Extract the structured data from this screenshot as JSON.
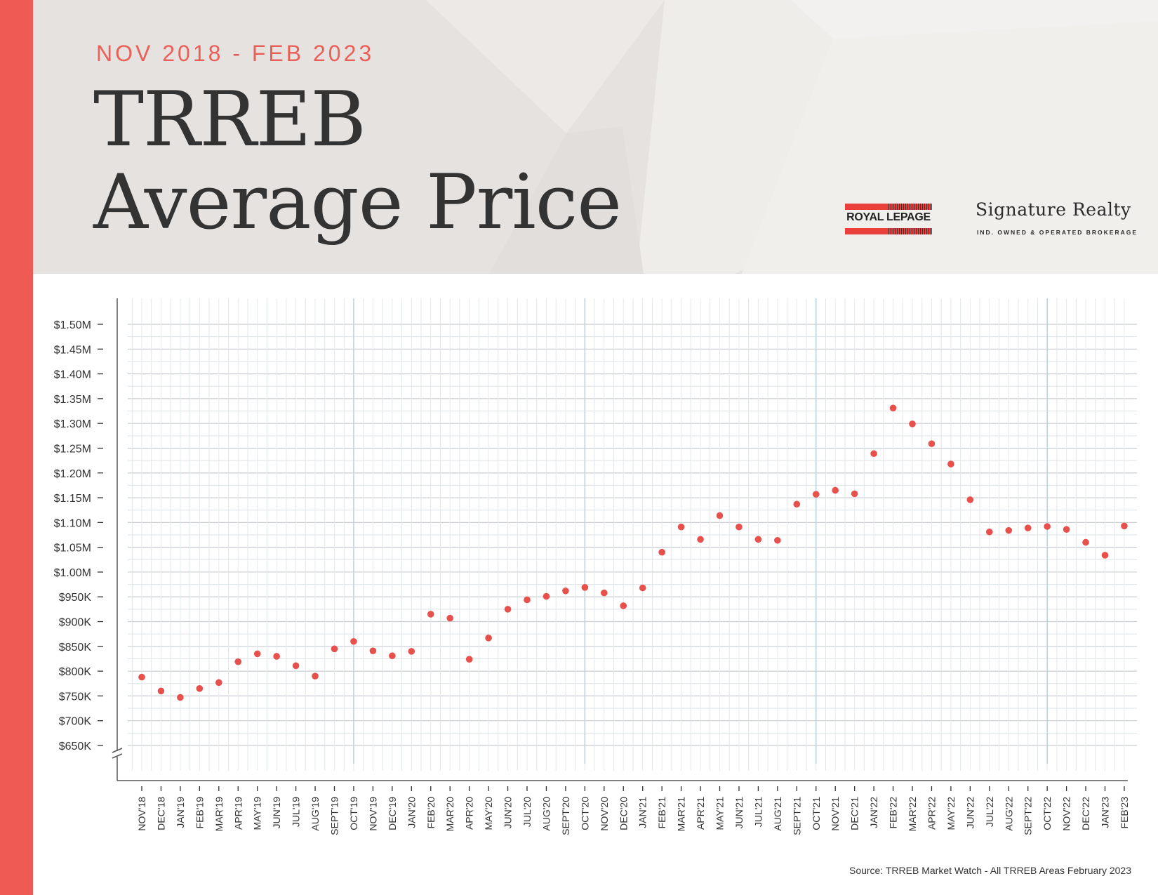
{
  "header": {
    "subtitle": "NOV 2018 - FEB 2023",
    "title_line1": "TRREB",
    "title_line2": "Average Price"
  },
  "logo": {
    "mark_text": "ROYAL LEPAGE",
    "name": "Signature Realty",
    "tagline": "IND. OWNED & OPERATED BROKERAGE"
  },
  "source": "Source: TRREB Market Watch - All TRREB Areas February 2023",
  "colors": {
    "accent": "#f05a55",
    "point": "#e8504b",
    "grid": "#cfd6db",
    "grid_major": "#bcd3e2",
    "axis": "#555555"
  },
  "chart_data": {
    "type": "scatter",
    "title": "TRREB Average Price",
    "subtitle": "NOV 2018 - FEB 2023",
    "ylim": [
      650000,
      1500000
    ],
    "grid": true,
    "y_ticks": [
      {
        "value": 1500000,
        "label": "$1.50M"
      },
      {
        "value": 1450000,
        "label": "$1.45M"
      },
      {
        "value": 1400000,
        "label": "$1.40M"
      },
      {
        "value": 1350000,
        "label": "$1.35M"
      },
      {
        "value": 1300000,
        "label": "$1.30M"
      },
      {
        "value": 1250000,
        "label": "$1.25M"
      },
      {
        "value": 1200000,
        "label": "$1.20M"
      },
      {
        "value": 1150000,
        "label": "$1.15M"
      },
      {
        "value": 1100000,
        "label": "$1.10M"
      },
      {
        "value": 1050000,
        "label": "$1.05M"
      },
      {
        "value": 1000000,
        "label": "$1.00M"
      },
      {
        "value": 950000,
        "label": "$950K"
      },
      {
        "value": 900000,
        "label": "$900K"
      },
      {
        "value": 850000,
        "label": "$850K"
      },
      {
        "value": 800000,
        "label": "$800K"
      },
      {
        "value": 750000,
        "label": "$750K"
      },
      {
        "value": 700000,
        "label": "$700K"
      },
      {
        "value": 650000,
        "label": "$650K"
      }
    ],
    "categories": [
      "NOV'18",
      "DEC'18",
      "JAN'19",
      "FEB'19",
      "MAR'19",
      "APR'19",
      "MAY'19",
      "JUN'19",
      "JUL'19",
      "AUG'19",
      "SEPT'19",
      "OCT'19",
      "NOV'19",
      "DEC'19",
      "JAN'20",
      "FEB'20",
      "MAR'20",
      "APR'20",
      "MAY'20",
      "JUN'20",
      "JUL'20",
      "AUG'20",
      "SEPT'20",
      "OCT'20",
      "NOV'20",
      "DEC'20",
      "JAN'21",
      "FEB'21",
      "MAR'21",
      "APR'21",
      "MAY'21",
      "JUN'21",
      "JUL'21",
      "AUG'21",
      "SEPT'21",
      "OCT'21",
      "NOV'21",
      "DEC'21",
      "JAN'22",
      "FEB'22",
      "MAR'22",
      "APR'22",
      "MAY'22",
      "JUN'22",
      "JUL'22",
      "AUG'22",
      "SEPT'22",
      "OCT'22",
      "NOV'22",
      "DEC'22",
      "JAN'23",
      "FEB'23"
    ],
    "values": [
      788000,
      760000,
      747000,
      765000,
      777000,
      819000,
      835000,
      830000,
      811000,
      790000,
      845000,
      860000,
      841000,
      831000,
      840000,
      915000,
      907000,
      824000,
      867000,
      925000,
      944000,
      951000,
      962000,
      969000,
      958000,
      932000,
      968000,
      1040000,
      1091000,
      1066000,
      1114000,
      1091000,
      1066000,
      1064000,
      1137000,
      1157000,
      1165000,
      1158000,
      1239000,
      1331000,
      1299000,
      1259000,
      1218000,
      1146000,
      1081000,
      1084000,
      1089000,
      1092000,
      1086000,
      1060000,
      1034000,
      1093000
    ],
    "major_grid_after": [
      "OCT'19",
      "OCT'20",
      "OCT'21",
      "OCT'22"
    ]
  }
}
